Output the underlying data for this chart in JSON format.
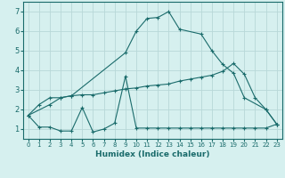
{
  "xlabel": "Humidex (Indice chaleur)",
  "xlim": [
    -0.5,
    23.5
  ],
  "ylim": [
    0.5,
    7.5
  ],
  "xticks": [
    0,
    1,
    2,
    3,
    4,
    5,
    6,
    7,
    8,
    9,
    10,
    11,
    12,
    13,
    14,
    15,
    16,
    17,
    18,
    19,
    20,
    21,
    22,
    23
  ],
  "yticks": [
    1,
    2,
    3,
    4,
    5,
    6,
    7
  ],
  "bg_color": "#d6f0ef",
  "grid_color": "#b8d8d8",
  "line_color": "#1a6b6b",
  "line1_x": [
    0,
    1,
    2,
    3,
    4,
    5,
    6,
    7,
    8,
    9,
    10,
    11,
    12,
    13,
    14,
    15,
    16,
    17,
    18,
    19,
    20,
    21,
    22,
    23
  ],
  "line1_y": [
    1.7,
    1.1,
    1.1,
    0.9,
    0.9,
    2.1,
    0.85,
    1.0,
    1.3,
    3.7,
    1.05,
    1.05,
    1.05,
    1.05,
    1.05,
    1.05,
    1.05,
    1.05,
    1.05,
    1.05,
    1.05,
    1.05,
    1.05,
    1.25
  ],
  "line2_x": [
    0,
    1,
    2,
    3,
    4,
    5,
    6,
    7,
    8,
    9,
    10,
    11,
    12,
    13,
    14,
    15,
    16,
    17,
    18,
    19,
    20,
    21,
    22,
    23
  ],
  "line2_y": [
    1.7,
    2.25,
    2.6,
    2.6,
    2.7,
    2.75,
    2.75,
    2.85,
    2.95,
    3.05,
    3.1,
    3.2,
    3.25,
    3.3,
    3.45,
    3.55,
    3.65,
    3.75,
    3.95,
    4.35,
    3.8,
    2.6,
    2.0,
    1.25
  ],
  "line3_x": [
    0,
    2,
    3,
    4,
    9,
    10,
    11,
    12,
    13,
    14,
    16,
    17,
    18,
    19,
    20,
    22,
    23
  ],
  "line3_y": [
    1.7,
    2.25,
    2.6,
    2.7,
    4.9,
    6.0,
    6.65,
    6.7,
    7.0,
    6.1,
    5.85,
    5.0,
    4.3,
    3.85,
    2.6,
    2.0,
    1.25
  ]
}
